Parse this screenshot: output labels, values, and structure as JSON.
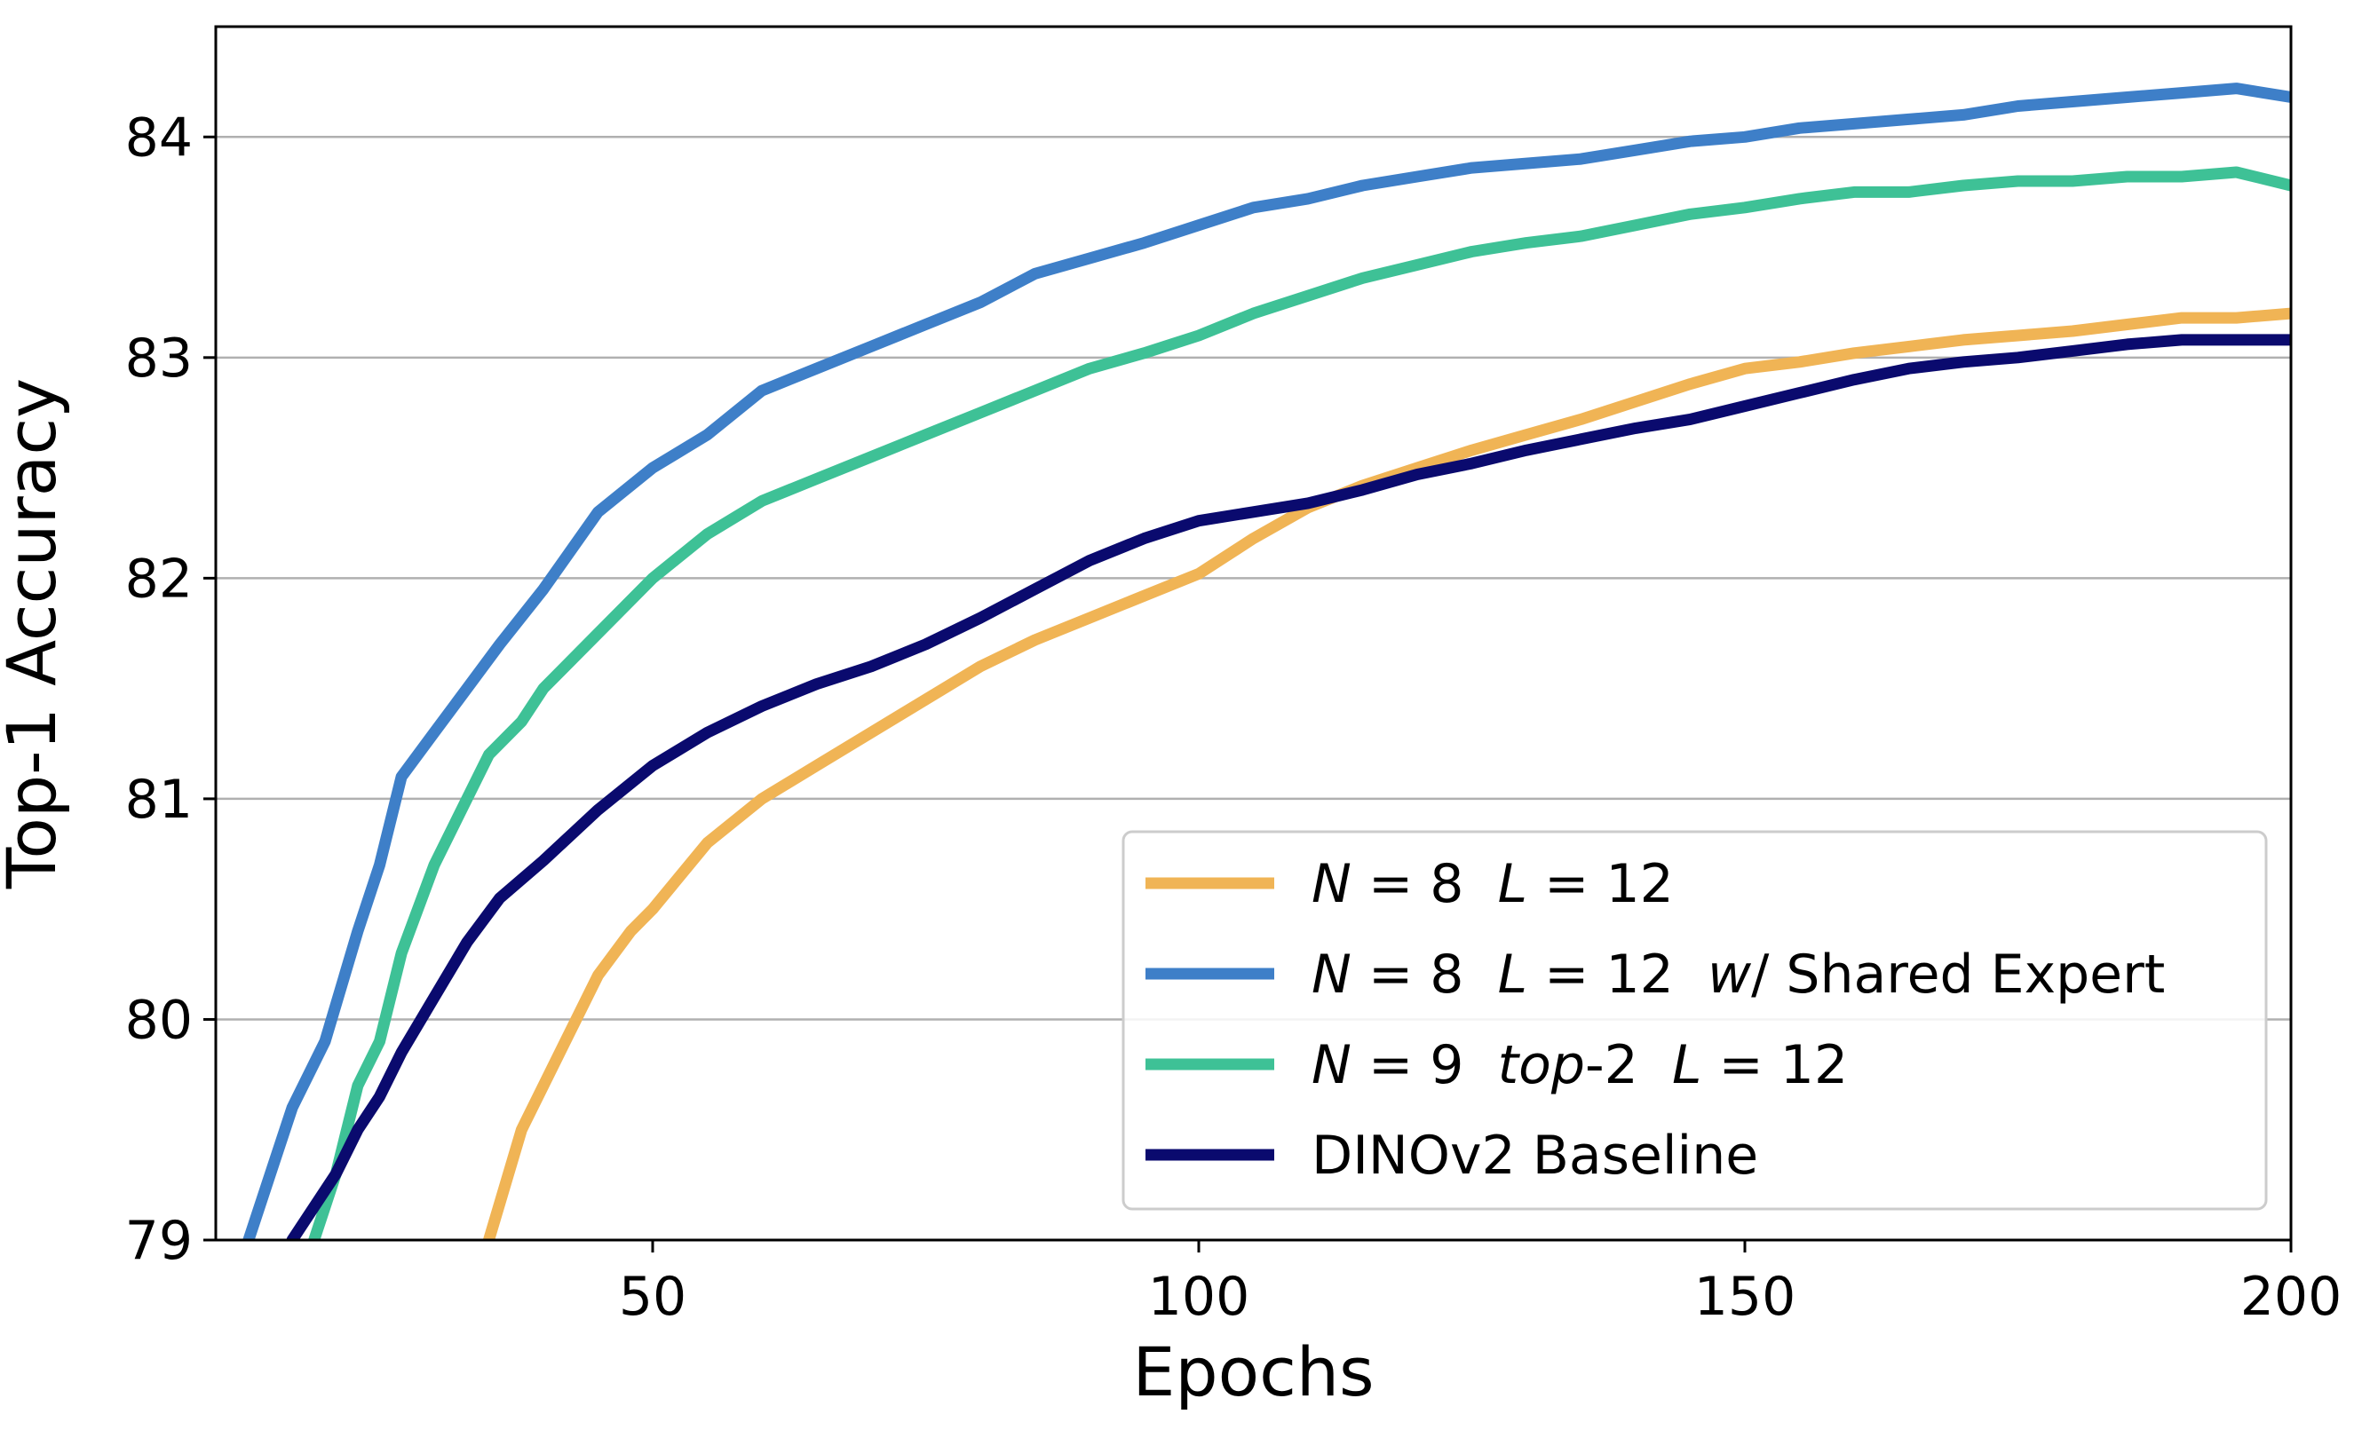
{
  "chart_data": {
    "type": "line",
    "title": "",
    "xlabel": "Epochs",
    "ylabel": "Top-1 Accuracy",
    "xlim": [
      10,
      200
    ],
    "ylim": [
      79,
      84.5
    ],
    "xticks": [
      50,
      100,
      150,
      200
    ],
    "yticks": [
      79,
      80,
      81,
      82,
      83,
      84
    ],
    "grid": "horizontal",
    "legend_position": "bottom-right",
    "series": [
      {
        "name": "N = 8  L = 12",
        "legend": [
          {
            "text": "N",
            "italic": true
          },
          {
            "text": " = 8  ",
            "italic": false
          },
          {
            "text": "L",
            "italic": true
          },
          {
            "text": " = 12",
            "italic": false
          }
        ],
        "color": "#F0B455",
        "x": [
          35,
          38,
          40,
          42,
          45,
          48,
          50,
          55,
          60,
          65,
          70,
          75,
          80,
          85,
          90,
          95,
          100,
          105,
          110,
          115,
          120,
          125,
          130,
          135,
          140,
          145,
          150,
          155,
          160,
          165,
          170,
          175,
          180,
          185,
          190,
          195,
          200
        ],
        "values": [
          79.0,
          79.5,
          79.7,
          79.9,
          80.2,
          80.4,
          80.5,
          80.8,
          81.0,
          81.15,
          81.3,
          81.45,
          81.6,
          81.72,
          81.82,
          81.92,
          82.02,
          82.18,
          82.32,
          82.42,
          82.5,
          82.58,
          82.65,
          82.72,
          82.8,
          82.88,
          82.95,
          82.98,
          83.02,
          83.05,
          83.08,
          83.1,
          83.12,
          83.15,
          83.18,
          83.18,
          83.2
        ]
      },
      {
        "name": "N = 8  L = 12  w/ Shared Expert",
        "legend": [
          {
            "text": "N",
            "italic": true
          },
          {
            "text": " = 8  ",
            "italic": false
          },
          {
            "text": "L",
            "italic": true
          },
          {
            "text": " = 12  ",
            "italic": false
          },
          {
            "text": "w",
            "italic": true
          },
          {
            "text": "/ Shared Expert",
            "italic": false
          }
        ],
        "color": "#3E7FC8",
        "x": [
          13,
          15,
          17,
          20,
          23,
          25,
          27,
          30,
          33,
          36,
          40,
          45,
          50,
          55,
          60,
          65,
          70,
          75,
          80,
          85,
          90,
          95,
          100,
          105,
          110,
          115,
          120,
          125,
          130,
          135,
          140,
          145,
          150,
          155,
          160,
          165,
          170,
          175,
          180,
          185,
          190,
          195,
          200
        ],
        "values": [
          79.0,
          79.3,
          79.6,
          79.9,
          80.4,
          80.7,
          81.1,
          81.3,
          81.5,
          81.7,
          81.95,
          82.3,
          82.5,
          82.65,
          82.85,
          82.95,
          83.05,
          83.15,
          83.25,
          83.38,
          83.45,
          83.52,
          83.6,
          83.68,
          83.72,
          83.78,
          83.82,
          83.86,
          83.88,
          83.9,
          83.94,
          83.98,
          84.0,
          84.04,
          84.06,
          84.08,
          84.1,
          84.14,
          84.16,
          84.18,
          84.2,
          84.22,
          84.18
        ]
      },
      {
        "name": "N = 9  top-2  L = 12",
        "legend": [
          {
            "text": "N",
            "italic": true
          },
          {
            "text": " = 9  ",
            "italic": false
          },
          {
            "text": "top",
            "italic": true
          },
          {
            "text": "-2  ",
            "italic": false
          },
          {
            "text": "L",
            "italic": true
          },
          {
            "text": " = 12",
            "italic": false
          }
        ],
        "color": "#3EC196",
        "x": [
          19,
          21,
          23,
          25,
          27,
          30,
          33,
          35,
          38,
          40,
          45,
          50,
          55,
          60,
          65,
          70,
          75,
          80,
          85,
          90,
          95,
          100,
          105,
          110,
          115,
          120,
          125,
          130,
          135,
          140,
          145,
          150,
          155,
          160,
          165,
          170,
          175,
          180,
          185,
          190,
          195,
          200
        ],
        "values": [
          79.0,
          79.3,
          79.7,
          79.9,
          80.3,
          80.7,
          81.0,
          81.2,
          81.35,
          81.5,
          81.75,
          82.0,
          82.2,
          82.35,
          82.45,
          82.55,
          82.65,
          82.75,
          82.85,
          82.95,
          83.02,
          83.1,
          83.2,
          83.28,
          83.36,
          83.42,
          83.48,
          83.52,
          83.55,
          83.6,
          83.65,
          83.68,
          83.72,
          83.75,
          83.75,
          83.78,
          83.8,
          83.8,
          83.82,
          83.82,
          83.84,
          83.78
        ]
      },
      {
        "name": "DINOv2 Baseline",
        "legend": [
          {
            "text": "DINOv2 Baseline",
            "italic": false
          }
        ],
        "color": "#0A0A6E",
        "x": [
          17,
          19,
          21,
          23,
          25,
          27,
          30,
          33,
          36,
          40,
          45,
          50,
          55,
          60,
          65,
          70,
          75,
          80,
          85,
          90,
          95,
          100,
          105,
          110,
          115,
          120,
          125,
          130,
          135,
          140,
          145,
          150,
          155,
          160,
          165,
          170,
          175,
          180,
          185,
          190,
          195,
          200
        ],
        "values": [
          79.0,
          79.15,
          79.3,
          79.5,
          79.65,
          79.85,
          80.1,
          80.35,
          80.55,
          80.72,
          80.95,
          81.15,
          81.3,
          81.42,
          81.52,
          81.6,
          81.7,
          81.82,
          81.95,
          82.08,
          82.18,
          82.26,
          82.3,
          82.34,
          82.4,
          82.47,
          82.52,
          82.58,
          82.63,
          82.68,
          82.72,
          82.78,
          82.84,
          82.9,
          82.95,
          82.98,
          83.0,
          83.03,
          83.06,
          83.08,
          83.08,
          83.08
        ]
      }
    ]
  }
}
